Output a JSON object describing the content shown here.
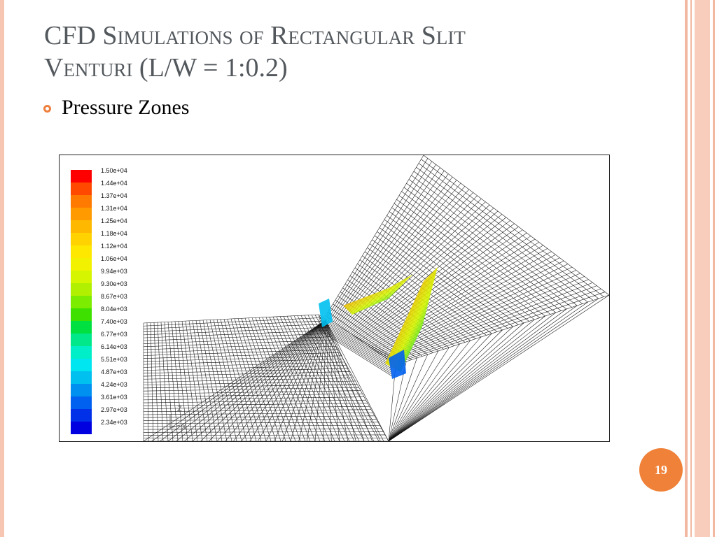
{
  "slide": {
    "title_line1": "CFD Simulations of Rectangular Slit",
    "title_line2": "Venturi (L/W = 1:0.2)",
    "bullet": "Pressure Zones",
    "page_number": "19"
  },
  "figure": {
    "colorbar_labels": [
      "1.50e+04",
      "1.44e+04",
      "1.37e+04",
      "1.31e+04",
      "1.25e+04",
      "1.18e+04",
      "1.12e+04",
      "1.06e+04",
      "9.94e+03",
      "9.30e+03",
      "8.67e+03",
      "8.04e+03",
      "7.40e+03",
      "6.77e+03",
      "6.14e+03",
      "5.51e+03",
      "4.87e+03",
      "4.24e+03",
      "3.61e+03",
      "2.97e+03",
      "2.34e+03"
    ],
    "colorbar_colors": [
      "#ff0000",
      "#ff4800",
      "#ff7a00",
      "#ff9a00",
      "#ffb800",
      "#ffd200",
      "#ffe800",
      "#f2f200",
      "#d6f500",
      "#b0f000",
      "#7cec00",
      "#3ee000",
      "#00e040",
      "#00e88a",
      "#00eec8",
      "#00e6f0",
      "#00c0f0",
      "#0090f0",
      "#0060f0",
      "#0030e8",
      "#0000e0"
    ],
    "axes_labels": {
      "z": "Z",
      "x": "X"
    }
  }
}
